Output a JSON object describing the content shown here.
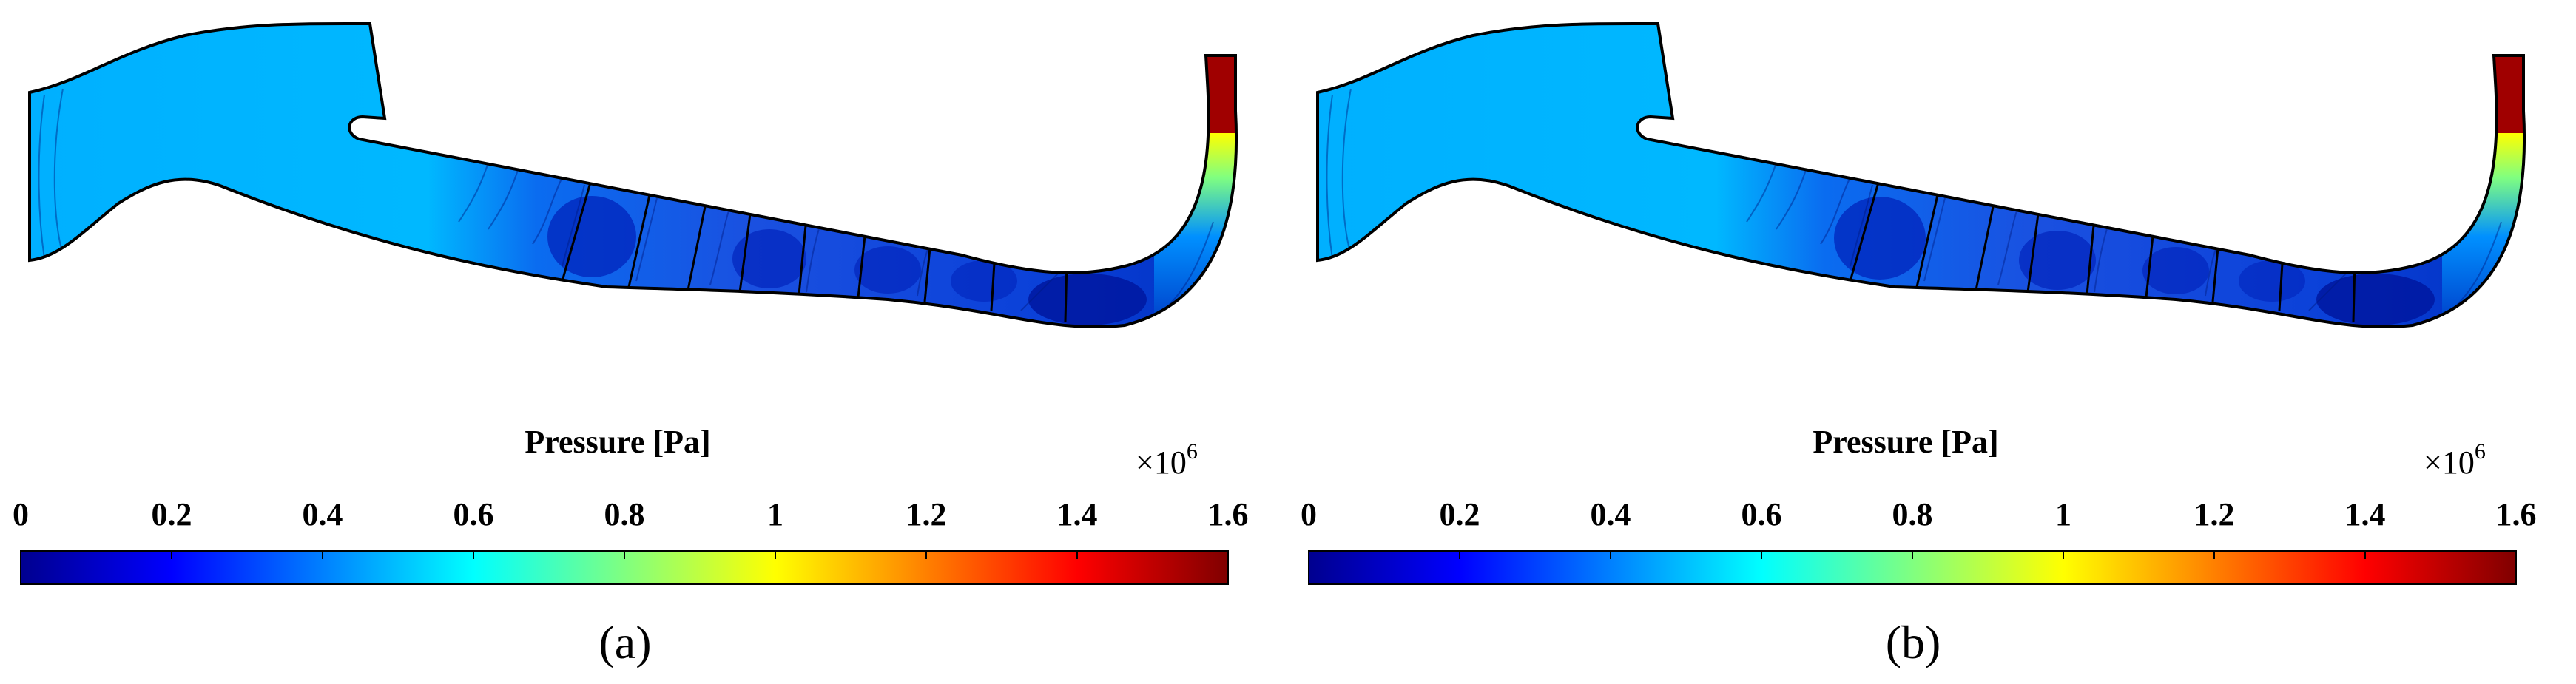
{
  "colors": {
    "jet": [
      "#00008f",
      "#0000ff",
      "#0080ff",
      "#00ffff",
      "#80ff80",
      "#ffff00",
      "#ff8000",
      "#ff0000",
      "#800000"
    ],
    "fluid_low": "#00b5ff",
    "fluid_mid": "#0a6cf0",
    "fluid_deep": "#0028c8",
    "outline": "#000000"
  },
  "panels": [
    {
      "label": "(a)",
      "colorbar": {
        "title": "Pressure [Pa]",
        "multiplier": "×10",
        "exponent": "6",
        "ticks": [
          "0",
          "0.2",
          "0.4",
          "0.6",
          "0.8",
          "1",
          "1.2",
          "1.4",
          "1.6"
        ],
        "min": 0,
        "max": 1.6
      }
    },
    {
      "label": "(b)",
      "colorbar": {
        "title": "Pressure [Pa]",
        "multiplier": "×10",
        "exponent": "6",
        "ticks": [
          "0",
          "0.2",
          "0.4",
          "0.6",
          "0.8",
          "1",
          "1.2",
          "1.4",
          "1.6"
        ],
        "min": 0,
        "max": 1.6
      }
    }
  ]
}
